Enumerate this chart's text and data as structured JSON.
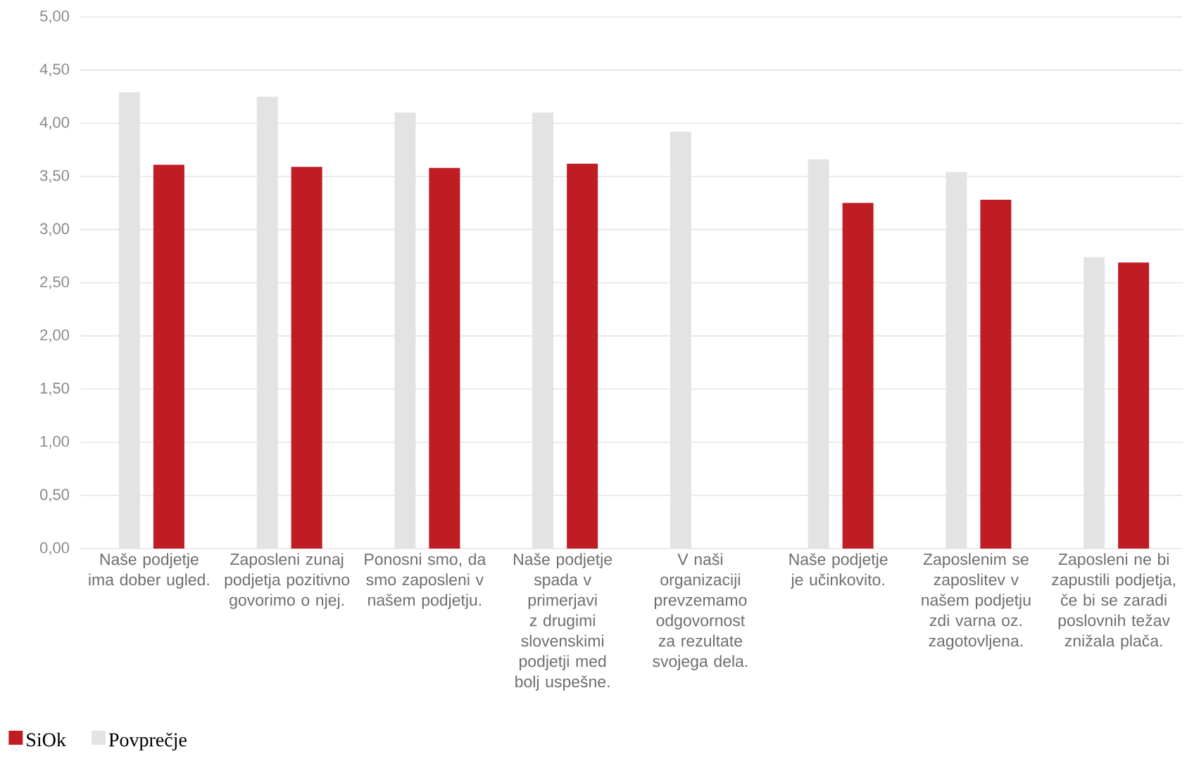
{
  "chart_data": {
    "type": "bar",
    "categories": [
      "Naše podjetje ima dober ugled.",
      "Zaposleni zunaj podjetja pozitivno govorimo o njej.",
      "Ponosni smo, da smo zaposleni v našem podjetju.",
      "Naše podjetje spada v primerjavi z drugimi slovenskimi podjetji med bolj uspešne.",
      "V naši organizaciji prevzemamo odgovornost za rezultate svojega dela.",
      "Naše podjetje je učinkovito.",
      "Zaposlenim se zaposlitev v našem podjetju zdi varna oz. zagotovljena.",
      "Zaposleni ne bi zapustili podjetja, če bi se zaradi poslovnih težav znižala plača."
    ],
    "series": [
      {
        "name": "SiOk",
        "color": "#c01c24",
        "values": [
          3.61,
          3.59,
          3.58,
          3.62,
          null,
          3.25,
          3.28,
          2.69
        ]
      },
      {
        "name": "Povprečje",
        "color": "#e3e3e3",
        "values": [
          4.29,
          4.25,
          4.1,
          4.1,
          3.92,
          3.66,
          3.54,
          2.74
        ]
      }
    ],
    "ylim": [
      0,
      5
    ],
    "yticks": [
      {
        "value": 0,
        "label": "0,00"
      },
      {
        "value": 0.5,
        "label": "0,50"
      },
      {
        "value": 1,
        "label": "1,00"
      },
      {
        "value": 1.5,
        "label": "1,50"
      },
      {
        "value": 2,
        "label": "2,00"
      },
      {
        "value": 2.5,
        "label": "2,50"
      },
      {
        "value": 3,
        "label": "3,00"
      },
      {
        "value": 3.5,
        "label": "3,50"
      },
      {
        "value": 4,
        "label": "4,00"
      },
      {
        "value": 4.5,
        "label": "4,50"
      },
      {
        "value": 5,
        "label": "5,00"
      }
    ],
    "grid": "y",
    "legend": "bottom left"
  }
}
